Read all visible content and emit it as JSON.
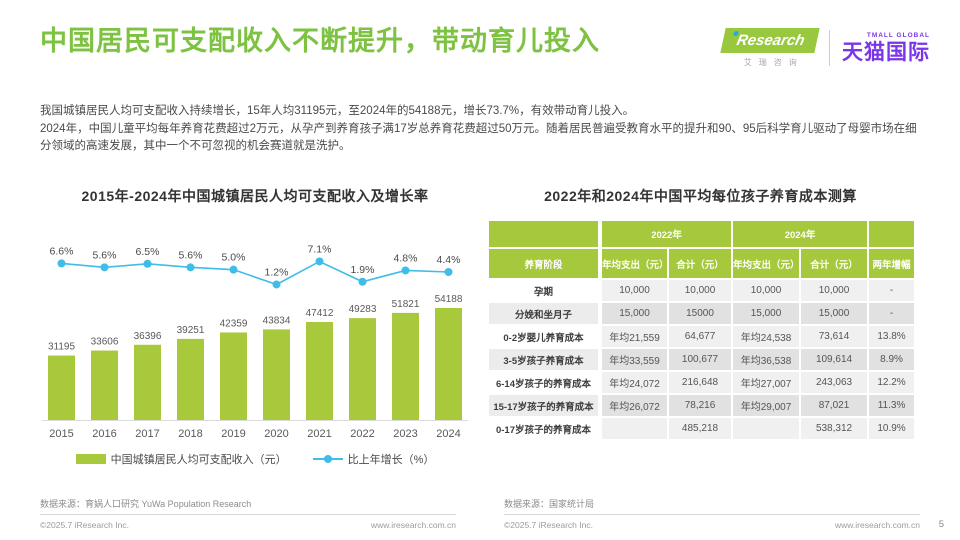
{
  "header": {
    "title": "中国居民可支配收入不断提升，带动育儿投入",
    "logos": {
      "iresearch": "Research",
      "iresearch_cn": "艾瑞咨询",
      "tmall_en": "TMALL GLOBAL",
      "tmall_cn": "天猫国际"
    }
  },
  "intro": {
    "line1": "我国城镇居民人均可支配收入持续增长，15年人均31195元，至2024年的54188元，增长73.7%，有效带动育儿投入。",
    "line2": "2024年，中国儿童平均每年养育花费超过2万元，从孕产到养育孩子满17岁总养育花费超过50万元。随着居民普遍受教育水平的提升和90、95后科学育儿驱动了母婴市场在细分领域的高速发展，其中一个不可忽视的机会赛道就是洗护。"
  },
  "chart_data": {
    "type": "bar",
    "title": "2015年-2024年中国城镇居民人均可支配收入及增长率",
    "categories": [
      "2015",
      "2016",
      "2017",
      "2018",
      "2019",
      "2020",
      "2021",
      "2022",
      "2023",
      "2024"
    ],
    "series": [
      {
        "name": "中国城镇居民人均可支配收入（元）",
        "kind": "bar",
        "values": [
          31195,
          33606,
          36396,
          39251,
          42359,
          43834,
          47412,
          49283,
          51821,
          54188
        ],
        "color": "#a9c93c"
      },
      {
        "name": "比上年增长（%）",
        "kind": "line",
        "values": [
          6.6,
          5.6,
          6.5,
          5.6,
          5.0,
          1.2,
          7.1,
          1.9,
          4.8,
          4.4
        ],
        "color": "#3fbce8",
        "label_suffix": "%"
      }
    ],
    "xlabel": "",
    "ylabel": "",
    "ylim_bar": [
      0,
      54188
    ],
    "ylim_line": [
      0,
      8
    ],
    "grid": false,
    "legend_position": "bottom"
  },
  "cost_table": {
    "title": "2022年和2024年中国平均每位孩子养育成本测算",
    "year_groups": [
      "2022年",
      "2024年"
    ],
    "columns": [
      "养育阶段",
      "年均支出（元）",
      "合计（元）",
      "年均支出（元）",
      "合计（元）",
      "两年增幅"
    ],
    "rows": [
      [
        "孕期",
        "10,000",
        "10,000",
        "10,000",
        "10,000",
        "-"
      ],
      [
        "分娩和坐月子",
        "15,000",
        "15000",
        "15,000",
        "15,000",
        "-"
      ],
      [
        "0-2岁婴儿养育成本",
        "年均21,559",
        "64,677",
        "年均24,538",
        "73,614",
        "13.8%"
      ],
      [
        "3-5岁孩子养育成本",
        "年均33,559",
        "100,677",
        "年均36,538",
        "109,614",
        "8.9%"
      ],
      [
        "6-14岁孩子的养育成本",
        "年均24,072",
        "216,648",
        "年均27,007",
        "243,063",
        "12.2%"
      ],
      [
        "15-17岁孩子的养育成本",
        "年均26,072",
        "78,216",
        "年均29,007",
        "87,021",
        "11.3%"
      ],
      [
        "0-17岁孩子的养育成本",
        "",
        "485,218",
        "",
        "538,312",
        "10.9%"
      ]
    ]
  },
  "footer": {
    "left": {
      "source": "数据来源：育娲人口研究 YuWa Population Research",
      "copyright": "©2025.7 iResearch Inc.",
      "site": "www.iresearch.com.cn"
    },
    "right": {
      "source": "数据来源：国家统计局",
      "copyright": "©2025.7 iResearch Inc.",
      "site": "www.iresearch.com.cn"
    },
    "page_number": "5"
  },
  "colors": {
    "title_green": "#7ec242",
    "bar_green": "#a9c93c",
    "line_blue": "#3fbce8",
    "table_header_green": "#a6c83d",
    "tmall_purple": "#7b35e8",
    "iresearch_green": "#97c83d"
  }
}
